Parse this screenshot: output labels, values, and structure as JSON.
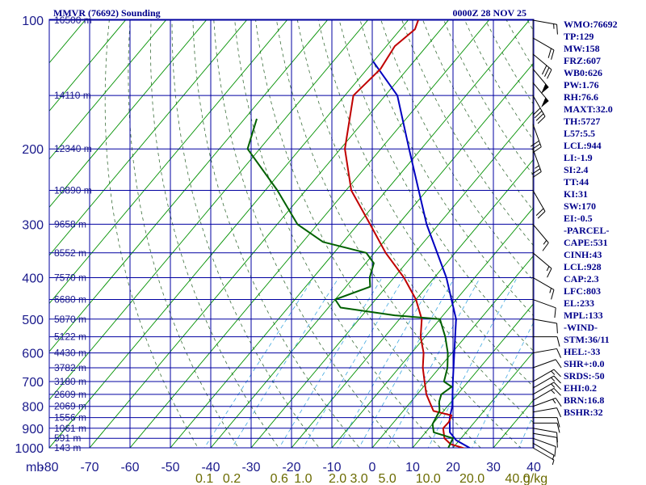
{
  "header": {
    "title": "MMVR (76692) Sounding",
    "time": "0000Z 28 NOV 25"
  },
  "indices": [
    "WMO:76692",
    "TP:129",
    "MW:158",
    "FRZ:607",
    "WB0:626",
    "PW:1.76",
    "RH:76.6",
    "MAXT:32.0",
    "TH:5727",
    "L57:5.5",
    "LCL:944",
    "LI:-1.9",
    "SI:2.4",
    "TT:44",
    "KI:31",
    "SW:170",
    "EI:-0.5",
    "-PARCEL-",
    "CAPE:531",
    "CINH:43",
    "LCL:928",
    "CAP:2.3",
    "LFC:803",
    "EL:233",
    "MPL:133",
    "-WIND-",
    "STM:36/11",
    "HEL:-33",
    "SHR+:0.0",
    "SRDS:-50",
    "EHI:0.2",
    "BRN:16.8",
    "BSHR:32"
  ],
  "colors": {
    "grid": "#0000a0",
    "isotherm": "#009000",
    "dry_adiabat": "#3a6e3a",
    "mixing_ratio": "#40a8e0",
    "temperature": "#c00000",
    "dewpoint": "#006000",
    "parcel": "#0000c0",
    "axis_label": "#1a1a8c",
    "mix_label": "#6b6b00"
  },
  "chart_data": {
    "type": "line",
    "title": "MMVR (76692) Sounding",
    "pressure_unit_label": "mb",
    "pressure_ticks": [
      "100",
      "200",
      "300",
      "400",
      "500",
      "600",
      "700",
      "800",
      "900",
      "1000"
    ],
    "temperature_ticks": [
      "-80",
      "-70",
      "-60",
      "-50",
      "-40",
      "-30",
      "-20",
      "-10",
      "0",
      "10",
      "20",
      "30",
      "40"
    ],
    "xlim": [
      -80,
      40
    ],
    "ylim": [
      1000,
      100
    ],
    "height_labels": [
      {
        "p": 100,
        "label": "16500 m"
      },
      {
        "p": 150,
        "label": "14110 m"
      },
      {
        "p": 200,
        "label": "12340 m"
      },
      {
        "p": 250,
        "label": "10890 m"
      },
      {
        "p": 300,
        "label": "9658 m"
      },
      {
        "p": 350,
        "label": "8552 m"
      },
      {
        "p": 400,
        "label": "7570 m"
      },
      {
        "p": 450,
        "label": "6680 m"
      },
      {
        "p": 500,
        "label": "5870 m"
      },
      {
        "p": 550,
        "label": "5122 m"
      },
      {
        "p": 600,
        "label": "4430 m"
      },
      {
        "p": 650,
        "label": "3782 m"
      },
      {
        "p": 700,
        "label": "3180 m"
      },
      {
        "p": 750,
        "label": "2609 m"
      },
      {
        "p": 800,
        "label": "2069 m"
      },
      {
        "p": 850,
        "label": "1556 m"
      },
      {
        "p": 900,
        "label": "1061 m"
      },
      {
        "p": 950,
        "label": "591 m"
      },
      {
        "p": 1000,
        "label": "143 m"
      }
    ],
    "mixing_ratio_labels": [
      "0.1",
      "0.2",
      "0.6",
      "1.0",
      "2.0",
      "3.0",
      "5.0",
      "10.0",
      "20.0",
      "40.0"
    ],
    "mixing_ratio_unit": "g/kg",
    "series": [
      {
        "id": "parcel",
        "points": [
          [
            1010,
            25.3
          ],
          [
            960,
            19.2
          ],
          [
            920,
            16.0
          ],
          [
            850,
            12.9
          ],
          [
            800,
            11.2
          ],
          [
            700,
            6.2
          ],
          [
            600,
            0.6
          ],
          [
            500,
            -6.0
          ],
          [
            400,
            -17.0
          ],
          [
            300,
            -33.0
          ],
          [
            250,
            -42.0
          ],
          [
            200,
            -53.0
          ],
          [
            150,
            -67.0
          ],
          [
            125,
            -80.0
          ]
        ]
      },
      {
        "id": "temperature",
        "points": [
          [
            1010,
            24.3
          ],
          [
            980,
            18.6
          ],
          [
            950,
            15.9
          ],
          [
            900,
            13.5
          ],
          [
            870,
            13.6
          ],
          [
            840,
            12.9
          ],
          [
            820,
            7.5
          ],
          [
            750,
            2.3
          ],
          [
            700,
            -0.8
          ],
          [
            650,
            -4.1
          ],
          [
            600,
            -7.0
          ],
          [
            550,
            -11.1
          ],
          [
            500,
            -14.5
          ],
          [
            450,
            -20.0
          ],
          [
            400,
            -27.5
          ],
          [
            350,
            -37.2
          ],
          [
            300,
            -47.0
          ],
          [
            250,
            -58.7
          ],
          [
            200,
            -68.9
          ],
          [
            150,
            -77.9
          ],
          [
            130,
            -76.7
          ],
          [
            115,
            -77.9
          ],
          [
            105,
            -76.4
          ],
          [
            100,
            -77.5
          ]
        ]
      },
      {
        "id": "dewpoint",
        "points": [
          [
            1010,
            19.0
          ],
          [
            950,
            18.0
          ],
          [
            920,
            12.0
          ],
          [
            880,
            10.0
          ],
          [
            850,
            9.5
          ],
          [
            820,
            9.0
          ],
          [
            780,
            7.0
          ],
          [
            750,
            6.0
          ],
          [
            720,
            7.0
          ],
          [
            700,
            4.0
          ],
          [
            650,
            2.0
          ],
          [
            600,
            -1.0
          ],
          [
            550,
            -5.0
          ],
          [
            500,
            -10.0
          ],
          [
            490,
            -22.0
          ],
          [
            470,
            -37.0
          ],
          [
            450,
            -40.0
          ],
          [
            420,
            -34.0
          ],
          [
            400,
            -36.0
          ],
          [
            370,
            -38.0
          ],
          [
            350,
            -42.0
          ],
          [
            330,
            -55.0
          ],
          [
            300,
            -65.0
          ],
          [
            250,
            -77.0
          ],
          [
            200,
            -93.0
          ],
          [
            170,
            -97.0
          ]
        ]
      }
    ],
    "wind_barbs": [
      {
        "p": 1000,
        "dir": 120,
        "spd": 5
      },
      {
        "p": 975,
        "dir": 120,
        "spd": 5
      },
      {
        "p": 950,
        "dir": 110,
        "spd": 10
      },
      {
        "p": 925,
        "dir": 100,
        "spd": 10
      },
      {
        "p": 900,
        "dir": 100,
        "spd": 10
      },
      {
        "p": 875,
        "dir": 90,
        "spd": 10
      },
      {
        "p": 850,
        "dir": 90,
        "spd": 10
      },
      {
        "p": 825,
        "dir": 80,
        "spd": 10
      },
      {
        "p": 800,
        "dir": 70,
        "spd": 15
      },
      {
        "p": 775,
        "dir": 60,
        "spd": 15
      },
      {
        "p": 750,
        "dir": 60,
        "spd": 15
      },
      {
        "p": 725,
        "dir": 60,
        "spd": 15
      },
      {
        "p": 700,
        "dir": 60,
        "spd": 15
      },
      {
        "p": 650,
        "dir": 70,
        "spd": 10
      },
      {
        "p": 600,
        "dir": 80,
        "spd": 10
      },
      {
        "p": 550,
        "dir": 90,
        "spd": 10
      },
      {
        "p": 500,
        "dir": 100,
        "spd": 10
      },
      {
        "p": 450,
        "dir": 110,
        "spd": 10
      },
      {
        "p": 400,
        "dir": 120,
        "spd": 15
      },
      {
        "p": 350,
        "dir": 130,
        "spd": 15
      },
      {
        "p": 300,
        "dir": 140,
        "spd": 15
      },
      {
        "p": 250,
        "dir": 150,
        "spd": 20
      },
      {
        "p": 200,
        "dir": 160,
        "spd": 25
      },
      {
        "p": 175,
        "dir": 160,
        "spd": 30
      },
      {
        "p": 150,
        "dir": 150,
        "spd": 40
      },
      {
        "p": 140,
        "dir": 140,
        "spd": 50
      },
      {
        "p": 130,
        "dir": 140,
        "spd": 50
      },
      {
        "p": 120,
        "dir": 130,
        "spd": 30
      },
      {
        "p": 110,
        "dir": 120,
        "spd": 20
      },
      {
        "p": 100,
        "dir": 100,
        "spd": 15
      }
    ]
  }
}
